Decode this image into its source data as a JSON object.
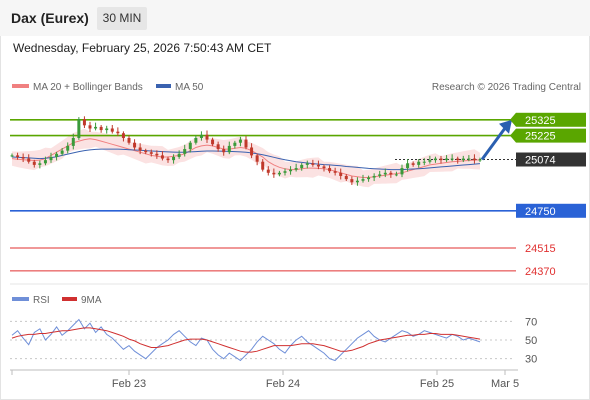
{
  "header": {
    "instrument": "Dax (Eurex)",
    "timeframe": "30 MIN",
    "datetime": "Wednesday, February 25, 2026 7:50:43 AM CET"
  },
  "legend": {
    "ma20": "MA 20 + Bollinger Bands",
    "ma50": "MA 50",
    "credit": "Research © 2026 Trading Central",
    "rsi": "RSI",
    "rsi_ma": "9MA"
  },
  "colors": {
    "resistance": "#5aa600",
    "support": "#2a62d6",
    "target_red": "#e03030",
    "current": "#333333",
    "ma20": "#f08080",
    "ma50": "#3a62b0",
    "bollinger_fill": "#fbe2e2",
    "candle_up": "#3a9a3a",
    "candle_down": "#c0392b",
    "rsi": "#6f8fd8",
    "rsi_ma": "#d03030"
  },
  "chart_data": [
    {
      "type": "candlestick",
      "title": "Dax (Eurex)",
      "timeframe": "30 MIN",
      "ylim": [
        24300,
        25450
      ],
      "x_ticks": [
        "Feb 23",
        "Feb 24",
        "Feb 25",
        "Mar 5"
      ],
      "levels": [
        {
          "name": "resistance-2",
          "value": 25325,
          "label": "25325",
          "color": "#5aa600",
          "label_bg": true
        },
        {
          "name": "resistance-1",
          "value": 25225,
          "label": "25225",
          "color": "#5aa600",
          "label_bg": true
        },
        {
          "name": "current-price",
          "value": 25074,
          "label": "25074",
          "color": "#333333",
          "label_bg": true
        },
        {
          "name": "pivot-support",
          "value": 24750,
          "label": "24750",
          "color": "#2a62d6",
          "label_bg": true
        },
        {
          "name": "support-1",
          "value": 24515,
          "label": "24515",
          "color": "#e03030",
          "label_bg": false
        },
        {
          "name": "support-2",
          "value": 24370,
          "label": "24370",
          "color": "#e03030",
          "label_bg": false
        }
      ],
      "price_series": [
        25100,
        25090,
        25080,
        25060,
        25040,
        25050,
        25070,
        25090,
        25110,
        25130,
        25160,
        25210,
        25330,
        25290,
        25270,
        25280,
        25260,
        25270,
        25250,
        25240,
        25210,
        25180,
        25150,
        25130,
        25120,
        25110,
        25100,
        25080,
        25070,
        25090,
        25110,
        25140,
        25180,
        25210,
        25230,
        25200,
        25170,
        25140,
        25120,
        25160,
        25180,
        25200,
        25150,
        25100,
        25060,
        25010,
        24990,
        24980,
        24990,
        25000,
        25010,
        25020,
        25040,
        25050,
        25040,
        25030,
        25020,
        25000,
        24990,
        24970,
        24950,
        24930,
        24940,
        24950,
        24960,
        24970,
        24980,
        24990,
        24980,
        24980,
        25020,
        25050,
        25040,
        25060,
        25060,
        25070,
        25080,
        25070,
        25080,
        25080,
        25070,
        25080,
        25080,
        25070,
        25074
      ],
      "ma20": [
        25080,
        25075,
        25072,
        25070,
        25068,
        25070,
        25080,
        25100,
        25120,
        25140,
        25160,
        25180,
        25190,
        25200,
        25205,
        25200,
        25190,
        25180,
        25170,
        25160,
        25150,
        25140,
        25130,
        25120,
        25110,
        25100,
        25095,
        25090,
        25090,
        25095,
        25100,
        25110,
        25130,
        25150,
        25160,
        25165,
        25160,
        25150,
        25140,
        25140,
        25145,
        25150,
        25145,
        25130,
        25110,
        25090,
        25060,
        25040,
        25025,
        25015,
        25010,
        25010,
        25015,
        25020,
        25020,
        25018,
        25015,
        25010,
        25000,
        24990,
        24980,
        24970,
        24965,
        24960,
        24960,
        24965,
        24970,
        24975,
        24980,
        24985,
        24990,
        25000,
        25010,
        25020,
        25030,
        25040,
        25045,
        25050,
        25055,
        25060,
        25062,
        25065,
        25068,
        25070,
        25072
      ],
      "ma50": [
        25090,
        25088,
        25086,
        25084,
        25082,
        25080,
        25082,
        25086,
        25092,
        25100,
        25108,
        25116,
        25124,
        25130,
        25135,
        25138,
        25140,
        25140,
        25140,
        25140,
        25138,
        25136,
        25134,
        25132,
        25130,
        25128,
        25126,
        25124,
        25122,
        25121,
        25120,
        25120,
        25122,
        25124,
        25126,
        25128,
        25128,
        25127,
        25126,
        25125,
        25124,
        25122,
        25120,
        25116,
        25110,
        25104,
        25096,
        25088,
        25080,
        25072,
        25066,
        25060,
        25056,
        25052,
        25048,
        25045,
        25042,
        25040,
        25037,
        25034,
        25030,
        25027,
        25024,
        25021,
        25018,
        25016,
        25014,
        25012,
        25010,
        25010,
        25010,
        25012,
        25014,
        25016,
        25018,
        25021,
        25024,
        25027,
        25030,
        25033,
        25036,
        25039,
        25042,
        25045,
        25048
      ]
    },
    {
      "type": "line",
      "name": "RSI panel",
      "ylim": [
        20,
        80
      ],
      "y_ticks": [
        70,
        50,
        30
      ],
      "series": [
        {
          "name": "RSI",
          "values": [
            55,
            60,
            52,
            45,
            58,
            62,
            50,
            56,
            64,
            55,
            60,
            66,
            72,
            62,
            68,
            58,
            64,
            56,
            52,
            46,
            40,
            44,
            38,
            34,
            30,
            36,
            42,
            46,
            50,
            56,
            60,
            54,
            48,
            44,
            52,
            50,
            40,
            34,
            30,
            36,
            32,
            28,
            34,
            40,
            48,
            54,
            50,
            46,
            40,
            36,
            44,
            50,
            54,
            48,
            44,
            40,
            36,
            30,
            28,
            34,
            40,
            46,
            52,
            56,
            60,
            54,
            50,
            48,
            52,
            56,
            60,
            58,
            54,
            56,
            60,
            58,
            56,
            54,
            52,
            56,
            54,
            50,
            52,
            50,
            48
          ]
        },
        {
          "name": "9MA",
          "values": [
            52,
            54,
            55,
            56,
            56,
            57,
            57,
            58,
            59,
            60,
            60,
            61,
            62,
            63,
            63,
            62,
            61,
            60,
            58,
            56,
            54,
            51,
            49,
            46,
            44,
            42,
            42,
            43,
            44,
            46,
            48,
            50,
            51,
            51,
            51,
            50,
            48,
            46,
            44,
            42,
            40,
            38,
            37,
            37,
            38,
            40,
            42,
            44,
            44,
            44,
            44,
            45,
            46,
            46,
            46,
            45,
            44,
            42,
            40,
            38,
            38,
            39,
            41,
            43,
            46,
            48,
            50,
            51,
            52,
            53,
            54,
            55,
            55,
            56,
            56,
            57,
            57,
            56,
            56,
            56,
            55,
            54,
            53,
            52,
            51
          ]
        }
      ]
    }
  ]
}
